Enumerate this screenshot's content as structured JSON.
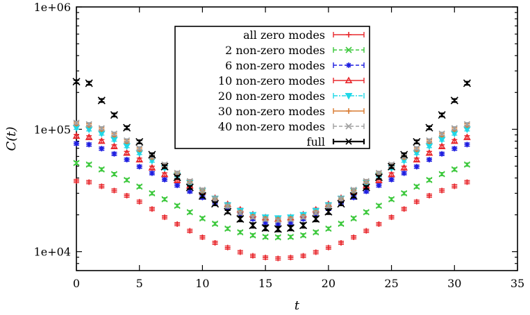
{
  "chart_data": {
    "type": "scatter",
    "xlabel": "t",
    "ylabel": "C(t)",
    "xlim": [
      0,
      35
    ],
    "ylim": [
      7000,
      1000000
    ],
    "yscale": "log",
    "xticks": [
      0,
      5,
      10,
      15,
      20,
      25,
      30,
      35
    ],
    "yticks": [
      10000,
      100000,
      1000000
    ],
    "ytick_labels": [
      "1e+04",
      "1e+05",
      "1e+06"
    ],
    "grid": false,
    "legend_position": "top-center",
    "x": [
      0,
      1,
      2,
      3,
      4,
      5,
      6,
      7,
      8,
      9,
      10,
      11,
      12,
      13,
      14,
      15,
      16,
      17,
      18,
      19,
      20,
      21,
      22,
      23,
      24,
      25,
      26,
      27,
      28,
      29,
      30,
      31
    ],
    "series": [
      {
        "name": "all zero modes",
        "color": "#e8282d",
        "marker": "plus",
        "linestyle": "solid",
        "values": [
          37800,
          37000,
          34200,
          31600,
          28700,
          25600,
          22300,
          19100,
          16800,
          14800,
          13100,
          11800,
          10800,
          9900,
          9250,
          8950,
          8800,
          8950,
          9250,
          9900,
          10800,
          11800,
          13100,
          14800,
          16800,
          19100,
          22300,
          25600,
          28700,
          31600,
          34200,
          37000
        ]
      },
      {
        "name": "2 non-zero modes",
        "color": "#3cc83c",
        "marker": "x",
        "linestyle": "dashed",
        "values": [
          53000,
          51500,
          47000,
          43000,
          38500,
          34000,
          30000,
          26800,
          23700,
          21000,
          18700,
          16900,
          15400,
          14400,
          13600,
          13200,
          13100,
          13200,
          13600,
          14400,
          15400,
          16900,
          18700,
          21000,
          23700,
          26800,
          30000,
          34000,
          38500,
          43000,
          47000,
          51500
        ]
      },
      {
        "name": "6 non-zero modes",
        "color": "#2020e0",
        "marker": "star",
        "linestyle": "dashed",
        "values": [
          76500,
          75000,
          69500,
          63000,
          56500,
          49500,
          43800,
          38800,
          34800,
          31100,
          27700,
          24900,
          22400,
          20100,
          18500,
          17300,
          16800,
          17300,
          18500,
          20100,
          22400,
          24900,
          27700,
          31100,
          34800,
          38800,
          43800,
          49500,
          56500,
          63000,
          69500,
          75000
        ]
      },
      {
        "name": "10 non-zero modes",
        "color": "#e8282d",
        "marker": "triangle-up",
        "linestyle": "solid",
        "values": [
          88000,
          86000,
          80000,
          72500,
          64000,
          56500,
          48500,
          42800,
          38200,
          34600,
          30800,
          27400,
          24400,
          22000,
          20100,
          19000,
          18500,
          19000,
          20100,
          22000,
          24400,
          27400,
          30800,
          34600,
          38200,
          42800,
          48500,
          56500,
          64000,
          72500,
          80000,
          86000
        ]
      },
      {
        "name": "20 non-zero modes",
        "color": "#20d8e8",
        "marker": "triangle-down",
        "linestyle": "dashdot",
        "values": [
          103000,
          100000,
          92500,
          82500,
          73000,
          64000,
          55500,
          48300,
          42000,
          36700,
          31500,
          27200,
          24000,
          21600,
          20000,
          19100,
          18800,
          19100,
          20000,
          21600,
          24000,
          27200,
          31500,
          36700,
          42000,
          48300,
          55500,
          64000,
          73000,
          82500,
          92500,
          100000
        ]
      },
      {
        "name": "30 non-zero modes",
        "color": "#d87a30",
        "marker": "plus",
        "linestyle": "solid",
        "values": [
          111000,
          108000,
          100000,
          90000,
          79500,
          68500,
          59000,
          50500,
          43500,
          37300,
          31700,
          27000,
          23600,
          21000,
          19400,
          18600,
          18300,
          18600,
          19400,
          21000,
          23600,
          27000,
          31700,
          37300,
          43500,
          50500,
          59000,
          68500,
          79500,
          90000,
          100000,
          108000
        ]
      },
      {
        "name": "40 non-zero modes",
        "color": "#a0a0a0",
        "marker": "x",
        "linestyle": "dashed",
        "values": [
          113000,
          110000,
          102000,
          92000,
          81000,
          70000,
          60000,
          51500,
          44000,
          37700,
          32000,
          27100,
          23500,
          20800,
          19100,
          18300,
          18000,
          18300,
          19100,
          20800,
          23500,
          27100,
          32000,
          37700,
          44000,
          51500,
          60000,
          70000,
          81000,
          92000,
          102000,
          110000
        ]
      },
      {
        "name": "full",
        "color": "#000000",
        "marker": "x",
        "linestyle": "solid",
        "values": [
          245000,
          238000,
          172000,
          131000,
          103000,
          79000,
          62000,
          49500,
          40500,
          33500,
          28500,
          24600,
          21200,
          18500,
          16400,
          15600,
          15300,
          15600,
          16400,
          18500,
          21200,
          24600,
          28500,
          33500,
          40500,
          49500,
          62000,
          79000,
          103000,
          131000,
          172000,
          238000
        ]
      }
    ]
  }
}
